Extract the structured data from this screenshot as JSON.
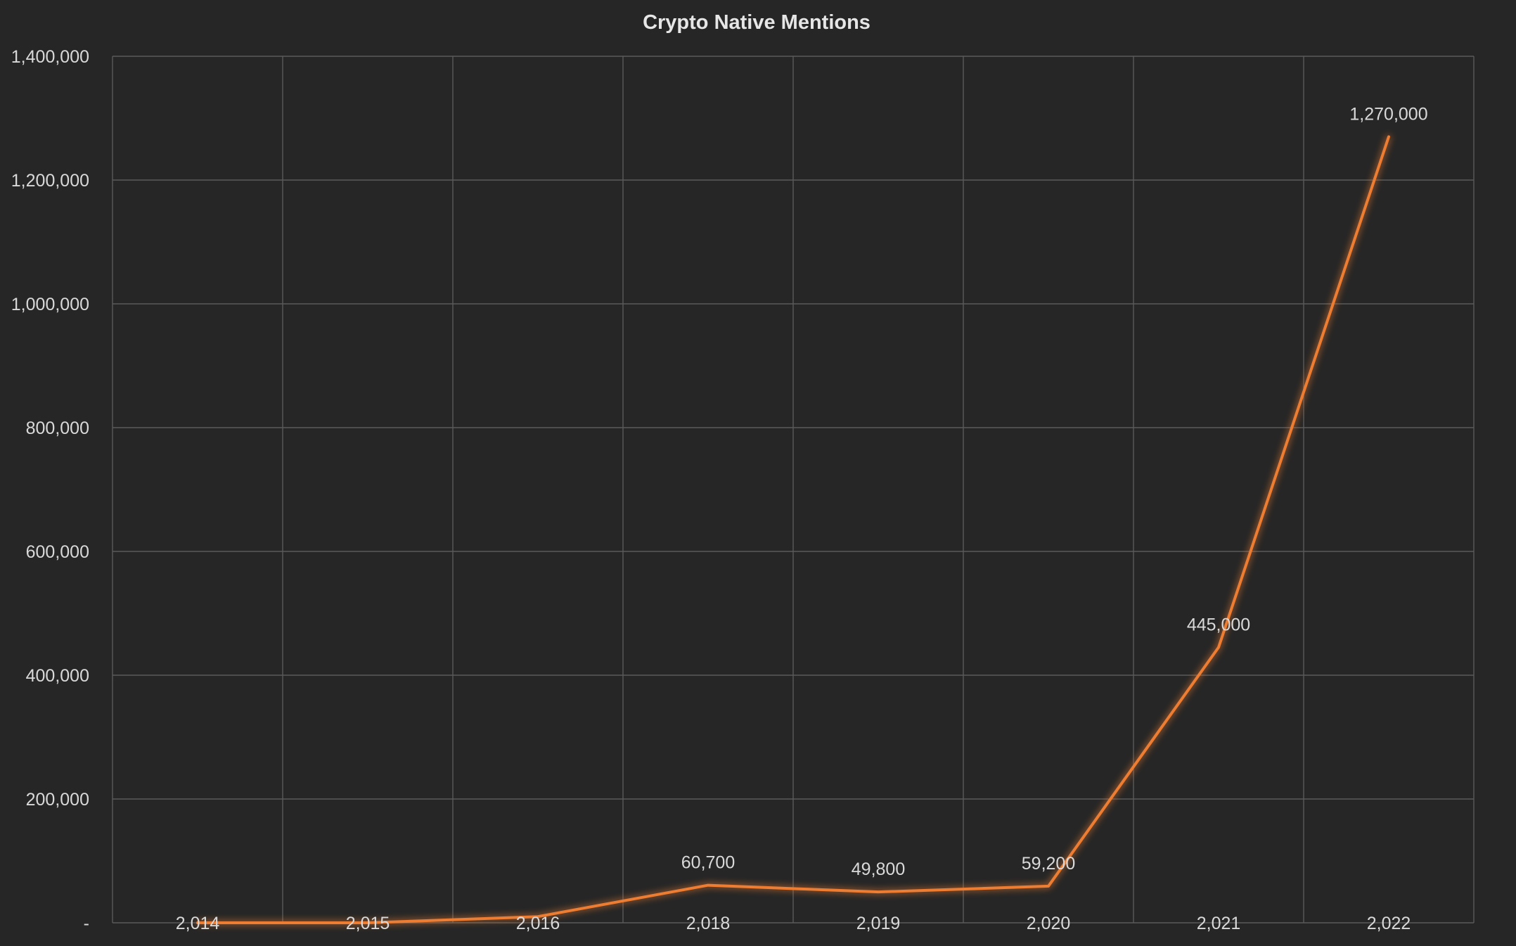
{
  "chart_data": {
    "type": "line",
    "title": "Crypto Native Mentions",
    "xlabel": "",
    "ylabel": "",
    "x": [
      "2,014",
      "2,015",
      "2,016",
      "2,018",
      "2,019",
      "2,020",
      "2,021",
      "2,022"
    ],
    "ylim": [
      0,
      1400000
    ],
    "y_ticks": [
      0,
      200000,
      400000,
      600000,
      800000,
      1000000,
      1200000,
      1400000
    ],
    "y_tick_labels": [
      "-",
      "200,000",
      "400,000",
      "600,000",
      "800,000",
      "1,000,000",
      "1,200,000",
      "1,400,000"
    ],
    "grid": true,
    "legend": "none",
    "series": [
      {
        "color": "#ed7d31",
        "values": [
          0,
          0,
          10000,
          60700,
          49800,
          59200,
          445000,
          1270000
        ],
        "data_labels": [
          "",
          "",
          "",
          "60,700",
          "49,800",
          "59,200",
          "445,000",
          "1,270,000"
        ]
      },
      {
        "color": "#4472c4",
        "values": [
          0,
          0,
          0,
          0,
          0,
          0,
          0,
          0
        ],
        "data_labels": [
          "",
          "",
          "",
          "",
          "",
          "",
          "",
          ""
        ]
      }
    ]
  }
}
